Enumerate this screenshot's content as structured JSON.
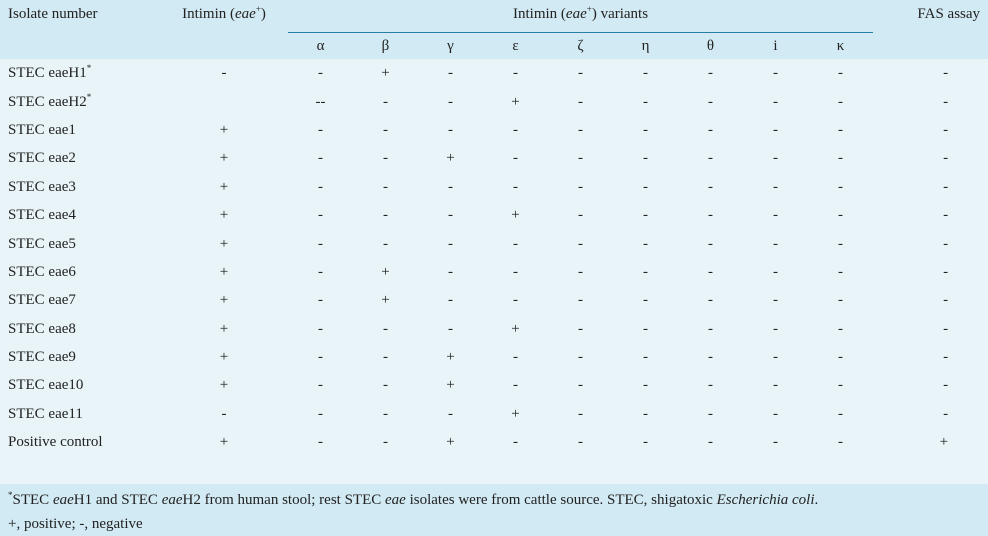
{
  "header": {
    "isolate_col": "Isolate number",
    "intimin_col_pre": "Intimin (",
    "intimin_col_italic": "eae",
    "intimin_col_sup": "+",
    "intimin_col_post": ")",
    "variants_pre": "Intimin (",
    "variants_italic": "eae",
    "variants_sup": "+",
    "variants_post": ") variants",
    "fas_col": "FAS assay",
    "variant_names": [
      "α",
      "β",
      "γ",
      "ε",
      "ζ",
      "η",
      "θ",
      "i",
      "κ"
    ]
  },
  "rows": [
    {
      "name": "STEC eaeH1",
      "sup": "*",
      "intimin": "-",
      "variants": [
        "-",
        "+",
        "-",
        "-",
        "-",
        "-",
        "-",
        "-",
        "-"
      ],
      "fas": "-"
    },
    {
      "name": "STEC eaeH2",
      "sup": "*",
      "intimin": "",
      "variants": [
        "--",
        "-",
        "-",
        "+",
        "-",
        "-",
        "-",
        "-",
        "-"
      ],
      "fas": "-"
    },
    {
      "name": "STEC eae1",
      "sup": "",
      "intimin": "+",
      "variants": [
        "-",
        "-",
        "-",
        "-",
        "-",
        "-",
        "-",
        "-",
        "-"
      ],
      "fas": "-"
    },
    {
      "name": "STEC eae2",
      "sup": "",
      "intimin": "+",
      "variants": [
        "-",
        "-",
        "+",
        "-",
        "-",
        "-",
        "-",
        "-",
        "-"
      ],
      "fas": "-"
    },
    {
      "name": "STEC eae3",
      "sup": "",
      "intimin": "+",
      "variants": [
        "-",
        "-",
        "-",
        "-",
        "-",
        "-",
        "-",
        "-",
        "-"
      ],
      "fas": "-"
    },
    {
      "name": "STEC eae4",
      "sup": "",
      "intimin": "+",
      "variants": [
        "-",
        "-",
        "-",
        "+",
        "-",
        "-",
        "-",
        "-",
        "-"
      ],
      "fas": "-"
    },
    {
      "name": "STEC eae5",
      "sup": "",
      "intimin": "+",
      "variants": [
        "-",
        "-",
        "-",
        "-",
        "-",
        "-",
        "-",
        "-",
        "-"
      ],
      "fas": "-"
    },
    {
      "name": "STEC eae6",
      "sup": "",
      "intimin": "+",
      "variants": [
        "-",
        "+",
        "-",
        "-",
        "-",
        "-",
        "-",
        "-",
        "-"
      ],
      "fas": "-"
    },
    {
      "name": "STEC eae7",
      "sup": "",
      "intimin": "+",
      "variants": [
        "-",
        "+",
        "-",
        "-",
        "-",
        "-",
        "-",
        "-",
        "-"
      ],
      "fas": "-"
    },
    {
      "name": "STEC eae8",
      "sup": "",
      "intimin": "+",
      "variants": [
        "-",
        "-",
        "-",
        "+",
        "-",
        "-",
        "-",
        "-",
        "-"
      ],
      "fas": "-"
    },
    {
      "name": "STEC eae9",
      "sup": "",
      "intimin": "+",
      "variants": [
        "-",
        "-",
        "+",
        "-",
        "-",
        "-",
        "-",
        "-",
        "-"
      ],
      "fas": "-"
    },
    {
      "name": "STEC eae10",
      "sup": "",
      "intimin": "+",
      "variants": [
        "-",
        "-",
        "+",
        "-",
        "-",
        "-",
        "-",
        "-",
        "-"
      ],
      "fas": "-"
    },
    {
      "name": "STEC eae11",
      "sup": "",
      "intimin": "-",
      "variants": [
        "-",
        "-",
        "-",
        "+",
        "-",
        "-",
        "-",
        "-",
        "-"
      ],
      "fas": "-"
    },
    {
      "name": "Positive control",
      "sup": "",
      "intimin": "+",
      "variants": [
        "-",
        "-",
        "+",
        "-",
        "-",
        "-",
        "-",
        "-",
        "-"
      ],
      "fas": "+"
    }
  ],
  "footnote": {
    "sup": "*",
    "a1": "STEC ",
    "a2": "eae",
    "a3": "H1 and STEC ",
    "a4": "eae",
    "a5": "H2 from human stool; rest STEC ",
    "a6": "eae",
    "a7": " isolates were from cattle source. STEC, shigatoxic ",
    "a8": "Escherichia coli",
    "a9": ".",
    "line2": "+, positive; -, negative"
  }
}
